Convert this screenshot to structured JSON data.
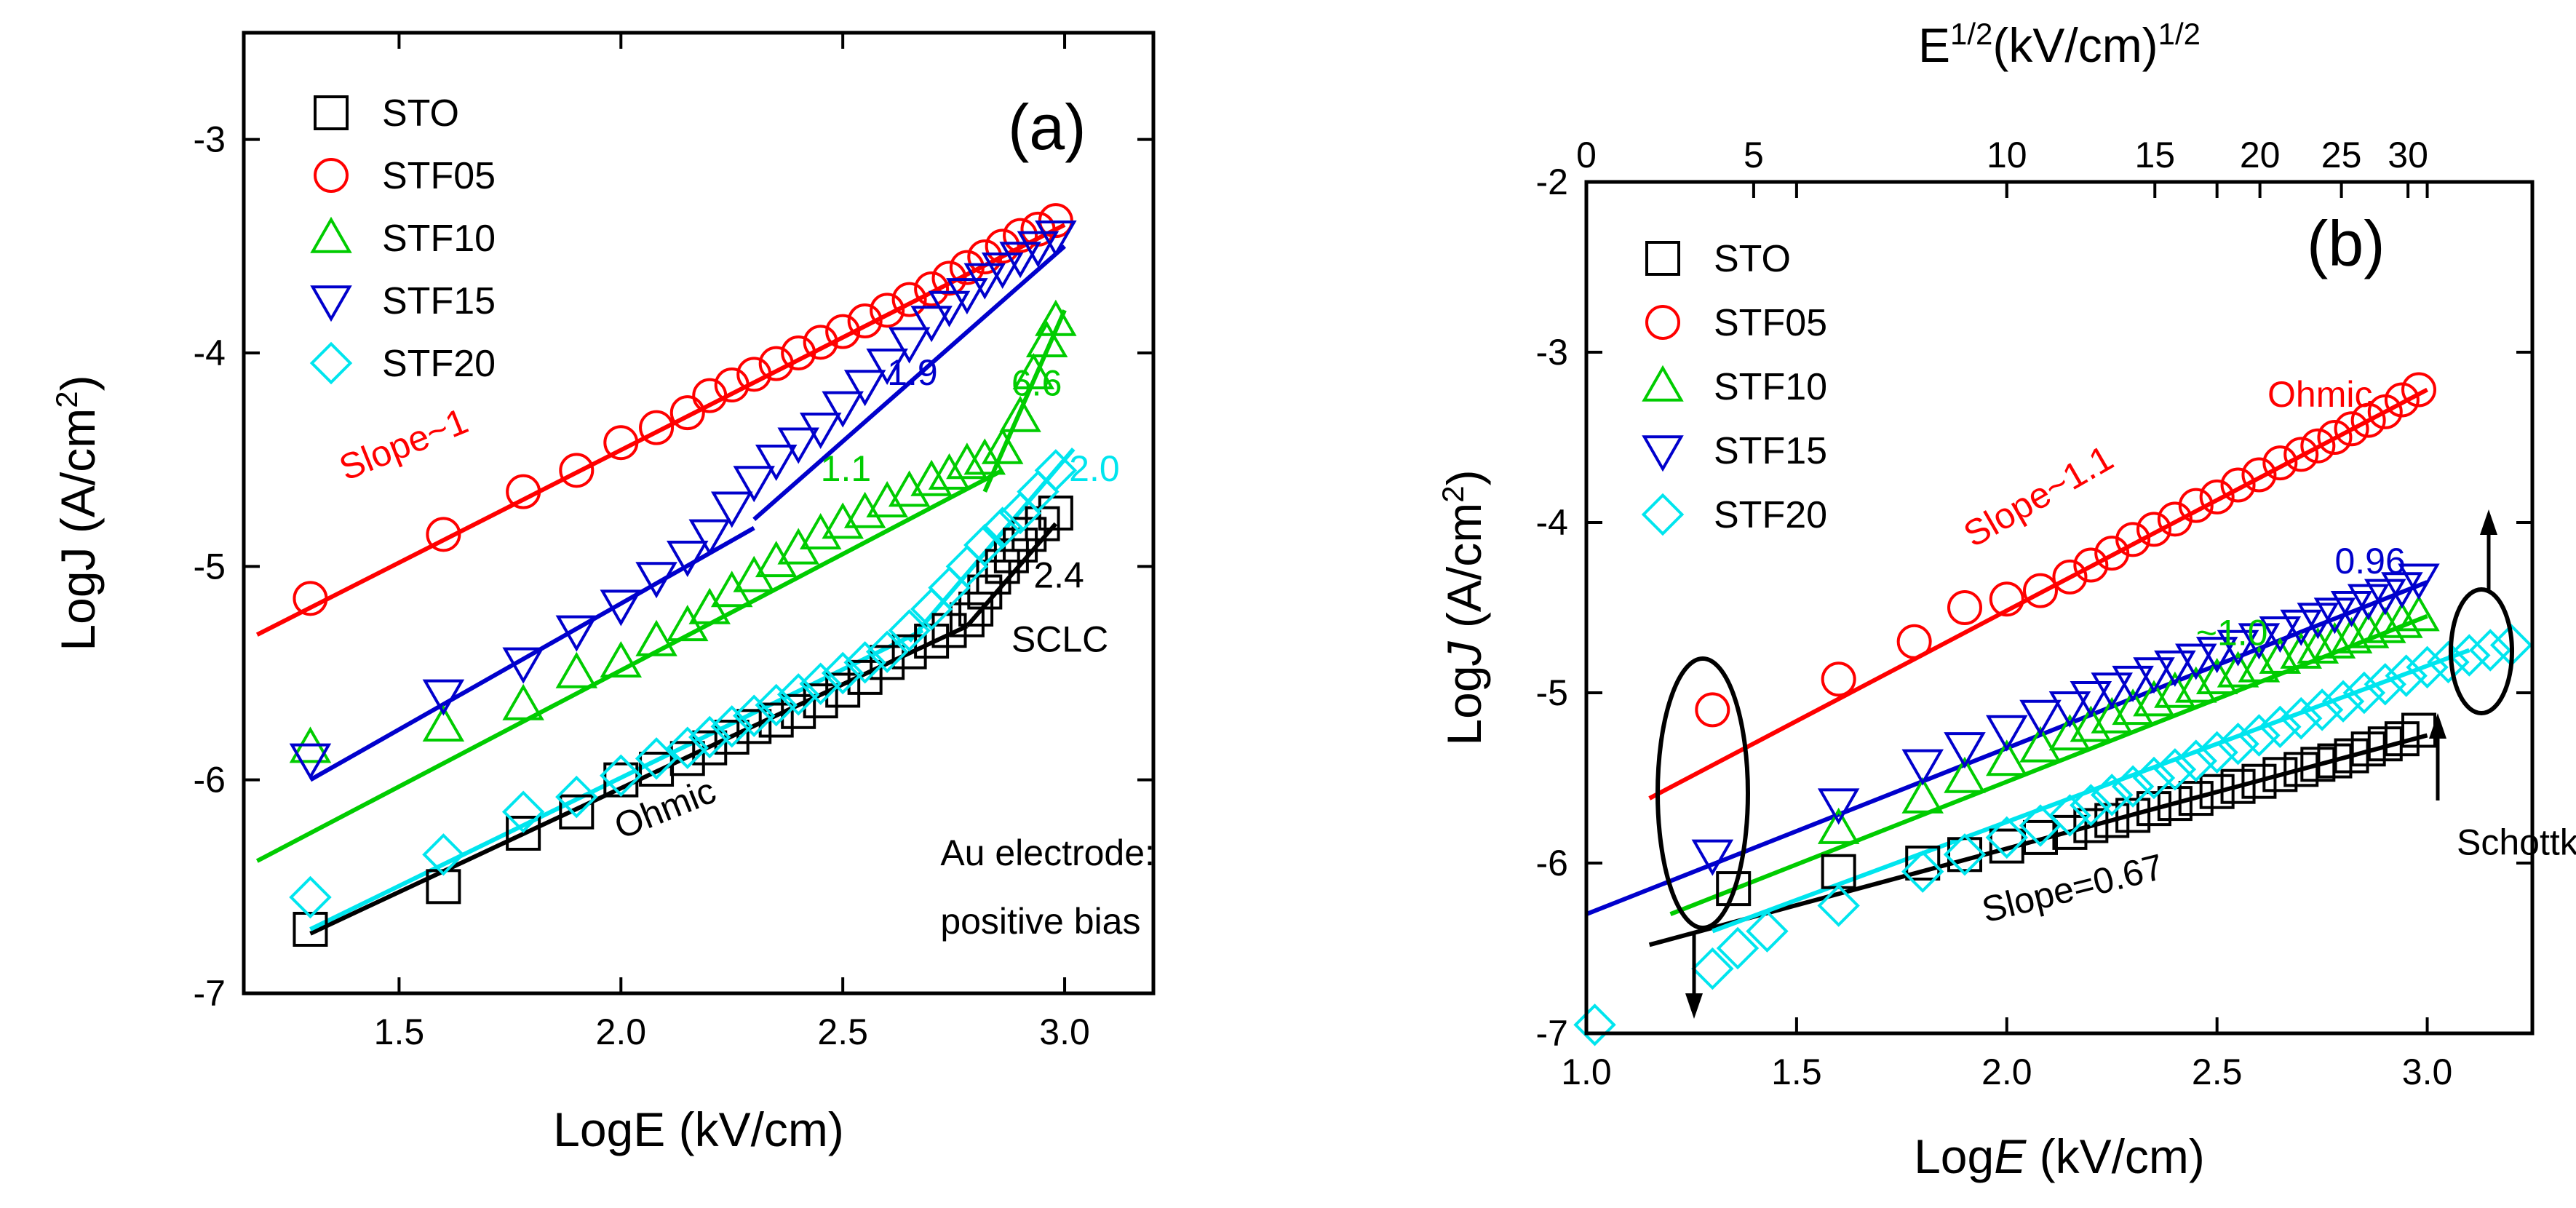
{
  "chart_data": [
    {
      "panel": "(a)",
      "type": "scatter",
      "xlabel": "LogE (kV/cm)",
      "ylabel_parts": [
        "LogJ (A/cm",
        "2",
        ")"
      ],
      "xlim": [
        1.15,
        3.2
      ],
      "ylim": [
        -7,
        -2.5
      ],
      "xticks": [
        1.5,
        2.0,
        2.5,
        3.0
      ],
      "xtick_labels": [
        "1.5",
        "2.0",
        "2.5",
        "3.0"
      ],
      "yticks": [
        -7,
        -6,
        -5,
        -4,
        -3
      ],
      "ytick_labels": [
        "-7",
        "-6",
        "-5",
        "-4",
        "-3"
      ],
      "legend": [
        "STO",
        "STF05",
        "STF10",
        "STF15",
        "STF20"
      ],
      "series": [
        {
          "name": "STO",
          "marker": "square",
          "color": "#000000",
          "x": [
            1.3,
            1.6,
            1.78,
            1.9,
            2.0,
            2.08,
            2.15,
            2.2,
            2.25,
            2.3,
            2.35,
            2.4,
            2.45,
            2.5,
            2.55,
            2.6,
            2.65,
            2.7,
            2.74,
            2.78,
            2.8,
            2.82,
            2.84,
            2.86,
            2.88,
            2.9,
            2.92,
            2.95,
            2.98
          ],
          "y": [
            -6.7,
            -6.5,
            -6.25,
            -6.15,
            -6.0,
            -5.95,
            -5.9,
            -5.85,
            -5.8,
            -5.75,
            -5.72,
            -5.68,
            -5.63,
            -5.58,
            -5.52,
            -5.45,
            -5.4,
            -5.35,
            -5.3,
            -5.25,
            -5.2,
            -5.12,
            -5.05,
            -5.0,
            -4.95,
            -4.9,
            -4.85,
            -4.8,
            -4.75
          ]
        },
        {
          "name": "STF05",
          "marker": "circle",
          "color": "#ff0000",
          "x": [
            1.3,
            1.6,
            1.78,
            1.9,
            2.0,
            2.08,
            2.15,
            2.2,
            2.25,
            2.3,
            2.35,
            2.4,
            2.45,
            2.5,
            2.55,
            2.6,
            2.65,
            2.7,
            2.74,
            2.78,
            2.82,
            2.86,
            2.9,
            2.94,
            2.98
          ],
          "y": [
            -5.15,
            -4.85,
            -4.65,
            -4.55,
            -4.42,
            -4.35,
            -4.28,
            -4.2,
            -4.15,
            -4.1,
            -4.05,
            -4.0,
            -3.95,
            -3.9,
            -3.85,
            -3.8,
            -3.75,
            -3.7,
            -3.65,
            -3.6,
            -3.55,
            -3.5,
            -3.45,
            -3.42,
            -3.38
          ]
        },
        {
          "name": "STF10",
          "marker": "triangle-up",
          "color": "#00cc00",
          "x": [
            1.3,
            1.6,
            1.78,
            1.9,
            2.0,
            2.08,
            2.15,
            2.2,
            2.25,
            2.3,
            2.35,
            2.4,
            2.45,
            2.5,
            2.55,
            2.6,
            2.65,
            2.7,
            2.74,
            2.78,
            2.82,
            2.86,
            2.9,
            2.93,
            2.96,
            2.98
          ],
          "y": [
            -5.85,
            -5.75,
            -5.65,
            -5.5,
            -5.45,
            -5.35,
            -5.28,
            -5.2,
            -5.12,
            -5.05,
            -4.98,
            -4.92,
            -4.85,
            -4.8,
            -4.75,
            -4.7,
            -4.65,
            -4.6,
            -4.57,
            -4.52,
            -4.5,
            -4.45,
            -4.3,
            -4.1,
            -3.95,
            -3.85
          ]
        },
        {
          "name": "STF15",
          "marker": "triangle-down",
          "color": "#0000cc",
          "x": [
            1.3,
            1.6,
            1.78,
            1.9,
            2.0,
            2.08,
            2.15,
            2.2,
            2.25,
            2.3,
            2.35,
            2.4,
            2.45,
            2.5,
            2.55,
            2.6,
            2.65,
            2.7,
            2.74,
            2.78,
            2.82,
            2.86,
            2.9,
            2.94,
            2.98
          ],
          "y": [
            -5.9,
            -5.6,
            -5.45,
            -5.3,
            -5.18,
            -5.05,
            -4.95,
            -4.85,
            -4.72,
            -4.6,
            -4.5,
            -4.42,
            -4.35,
            -4.25,
            -4.15,
            -4.05,
            -3.95,
            -3.85,
            -3.78,
            -3.72,
            -3.65,
            -3.6,
            -3.55,
            -3.5,
            -3.45
          ]
        },
        {
          "name": "STF20",
          "marker": "diamond",
          "color": "#00e5ee",
          "x": [
            1.3,
            1.6,
            1.78,
            1.9,
            2.0,
            2.08,
            2.15,
            2.2,
            2.25,
            2.3,
            2.35,
            2.4,
            2.45,
            2.5,
            2.55,
            2.6,
            2.65,
            2.7,
            2.74,
            2.78,
            2.82,
            2.86,
            2.9,
            2.94,
            2.98
          ],
          "y": [
            -6.55,
            -6.35,
            -6.15,
            -6.08,
            -5.98,
            -5.9,
            -5.85,
            -5.8,
            -5.75,
            -5.7,
            -5.65,
            -5.6,
            -5.55,
            -5.5,
            -5.45,
            -5.4,
            -5.3,
            -5.2,
            -5.1,
            -5.0,
            -4.9,
            -4.82,
            -4.75,
            -4.65,
            -4.55
          ]
        }
      ],
      "fits": [
        {
          "series": "STO",
          "x": [
            1.3,
            2.78
          ],
          "y": [
            -6.72,
            -5.28
          ]
        },
        {
          "series": "STO",
          "x": [
            2.78,
            2.98
          ],
          "y": [
            -5.28,
            -4.8
          ]
        },
        {
          "series": "STF05",
          "x": [
            1.18,
            3.0
          ],
          "y": [
            -5.32,
            -3.4
          ]
        },
        {
          "series": "STF10",
          "x": [
            1.18,
            2.86
          ],
          "y": [
            -6.38,
            -4.55
          ]
        },
        {
          "series": "STF10",
          "x": [
            2.82,
            3.0
          ],
          "y": [
            -4.65,
            -3.8
          ]
        },
        {
          "series": "STF15",
          "x": [
            1.3,
            2.3
          ],
          "y": [
            -6.0,
            -4.82
          ]
        },
        {
          "series": "STF15",
          "x": [
            2.3,
            3.0
          ],
          "y": [
            -4.78,
            -3.5
          ]
        },
        {
          "series": "STF20",
          "x": [
            1.3,
            2.68
          ],
          "y": [
            -6.7,
            -5.3
          ]
        },
        {
          "series": "STF20",
          "x": [
            2.65,
            3.02
          ],
          "y": [
            -5.35,
            -4.45
          ]
        }
      ],
      "annotations": [
        {
          "text": "Slope~1",
          "x": 1.38,
          "y": -4.6,
          "color": "#ff0000",
          "rotate": -22
        },
        {
          "text": "1.9",
          "x": 2.6,
          "y": -4.15,
          "color": "#0000cc"
        },
        {
          "text": "6.6",
          "x": 2.88,
          "y": -4.2,
          "color": "#00cc00"
        },
        {
          "text": "1.1",
          "x": 2.45,
          "y": -4.6,
          "color": "#00cc00"
        },
        {
          "text": "2.0",
          "x": 3.01,
          "y": -4.6,
          "color": "#00e5ee"
        },
        {
          "text": "2.4",
          "x": 2.93,
          "y": -5.1,
          "color": "#000000"
        },
        {
          "text": "SCLC",
          "x": 2.88,
          "y": -5.4,
          "color": "#000000"
        },
        {
          "text": "Ohmic",
          "x": 2.0,
          "y": -6.28,
          "color": "#000000",
          "rotate": -22
        },
        {
          "text": "Au electrode:",
          "x": 2.72,
          "y": -6.4,
          "color": "#000000"
        },
        {
          "text": "positive bias",
          "x": 2.72,
          "y": -6.72,
          "color": "#000000"
        }
      ]
    },
    {
      "panel": "(b)",
      "type": "scatter",
      "xlabel_parts": [
        "Log",
        "E",
        " (kV/cm)"
      ],
      "ylabel_parts": [
        "Log",
        "J",
        " (A/cm",
        "2",
        ")"
      ],
      "top_xlabel_parts": [
        "E",
        "1/2",
        "(kV/cm)",
        "1/2"
      ],
      "xlim": [
        1.0,
        3.25
      ],
      "ylim": [
        -7,
        -2
      ],
      "xticks": [
        1.0,
        1.5,
        2.0,
        2.5,
        3.0
      ],
      "xtick_labels": [
        "1.0",
        "1.5",
        "2.0",
        "2.5",
        "3.0"
      ],
      "yticks": [
        -7,
        -6,
        -5,
        -4,
        -3,
        -2
      ],
      "ytick_labels": [
        "-7",
        "-6",
        "-5",
        "-4",
        "-3",
        "-2"
      ],
      "top_xticks": [
        0,
        5,
        10,
        15,
        20,
        25,
        30
      ],
      "top_xtick_labels": [
        "0",
        "5",
        "10",
        "15",
        "20",
        "25",
        "30"
      ],
      "legend": [
        "STO",
        "STF05",
        "STF10",
        "STF15",
        "STF20"
      ],
      "series": [
        {
          "name": "STO",
          "marker": "square",
          "color": "#000000",
          "x": [
            1.35,
            1.6,
            1.8,
            1.9,
            2.0,
            2.08,
            2.15,
            2.2,
            2.25,
            2.3,
            2.35,
            2.4,
            2.45,
            2.5,
            2.55,
            2.6,
            2.65,
            2.7,
            2.74,
            2.78,
            2.82,
            2.86,
            2.9,
            2.94,
            2.98
          ],
          "y": [
            -6.15,
            -6.05,
            -6.0,
            -5.95,
            -5.9,
            -5.85,
            -5.82,
            -5.78,
            -5.75,
            -5.72,
            -5.68,
            -5.65,
            -5.62,
            -5.58,
            -5.55,
            -5.52,
            -5.48,
            -5.45,
            -5.42,
            -5.4,
            -5.37,
            -5.33,
            -5.3,
            -5.27,
            -5.22
          ]
        },
        {
          "name": "STF05",
          "marker": "circle",
          "color": "#ff0000",
          "x": [
            1.3,
            1.6,
            1.78,
            1.9,
            2.0,
            2.08,
            2.15,
            2.2,
            2.25,
            2.3,
            2.35,
            2.4,
            2.45,
            2.5,
            2.55,
            2.6,
            2.65,
            2.7,
            2.74,
            2.78,
            2.82,
            2.86,
            2.9,
            2.94,
            2.98
          ],
          "y": [
            -5.1,
            -4.92,
            -4.7,
            -4.5,
            -4.45,
            -4.4,
            -4.32,
            -4.25,
            -4.18,
            -4.1,
            -4.04,
            -3.98,
            -3.9,
            -3.85,
            -3.78,
            -3.72,
            -3.65,
            -3.6,
            -3.55,
            -3.5,
            -3.45,
            -3.4,
            -3.35,
            -3.28,
            -3.22
          ]
        },
        {
          "name": "STF10",
          "marker": "triangle-up",
          "color": "#00cc00",
          "x": [
            1.6,
            1.8,
            1.9,
            2.0,
            2.08,
            2.15,
            2.2,
            2.25,
            2.3,
            2.35,
            2.4,
            2.45,
            2.5,
            2.55,
            2.6,
            2.65,
            2.7,
            2.74,
            2.78,
            2.82,
            2.86,
            2.9,
            2.94,
            2.98
          ],
          "y": [
            -5.8,
            -5.62,
            -5.5,
            -5.4,
            -5.32,
            -5.25,
            -5.2,
            -5.15,
            -5.1,
            -5.05,
            -5.0,
            -4.97,
            -4.92,
            -4.88,
            -4.85,
            -4.8,
            -4.77,
            -4.74,
            -4.71,
            -4.68,
            -4.65,
            -4.62,
            -4.59,
            -4.55
          ]
        },
        {
          "name": "STF15",
          "marker": "triangle-down",
          "color": "#0000cc",
          "x": [
            1.3,
            1.6,
            1.8,
            1.9,
            2.0,
            2.08,
            2.15,
            2.2,
            2.25,
            2.3,
            2.35,
            2.4,
            2.45,
            2.5,
            2.55,
            2.6,
            2.65,
            2.7,
            2.74,
            2.78,
            2.82,
            2.86,
            2.9,
            2.94,
            2.98
          ],
          "y": [
            -5.95,
            -5.65,
            -5.42,
            -5.32,
            -5.22,
            -5.13,
            -5.08,
            -5.02,
            -4.97,
            -4.93,
            -4.88,
            -4.84,
            -4.8,
            -4.76,
            -4.72,
            -4.68,
            -4.64,
            -4.6,
            -4.56,
            -4.53,
            -4.49,
            -4.45,
            -4.42,
            -4.38,
            -4.33
          ]
        },
        {
          "name": "STF20",
          "marker": "diamond",
          "color": "#00e5ee",
          "x": [
            1.02,
            1.3,
            1.36,
            1.43,
            1.6,
            1.8,
            1.9,
            2.0,
            2.08,
            2.15,
            2.2,
            2.25,
            2.3,
            2.35,
            2.4,
            2.45,
            2.5,
            2.55,
            2.6,
            2.65,
            2.7,
            2.75,
            2.8,
            2.85,
            2.9,
            2.95,
            3.0,
            3.05,
            3.1,
            3.15,
            3.2
          ],
          "y": [
            -6.95,
            -6.62,
            -6.5,
            -6.4,
            -6.25,
            -6.05,
            -5.95,
            -5.85,
            -5.78,
            -5.72,
            -5.66,
            -5.6,
            -5.55,
            -5.5,
            -5.45,
            -5.4,
            -5.35,
            -5.3,
            -5.25,
            -5.2,
            -5.15,
            -5.1,
            -5.05,
            -5.0,
            -4.95,
            -4.9,
            -4.85,
            -4.82,
            -4.78,
            -4.75,
            -4.72
          ]
        }
      ],
      "fits": [
        {
          "series": "STO",
          "x": [
            1.15,
            3.0
          ],
          "y": [
            -6.48,
            -5.25
          ]
        },
        {
          "series": "STF05",
          "x": [
            1.15,
            3.0
          ],
          "y": [
            -5.62,
            -3.22
          ]
        },
        {
          "series": "STF10",
          "x": [
            1.2,
            3.0
          ],
          "y": [
            -6.3,
            -4.55
          ]
        },
        {
          "series": "STF15",
          "x": [
            1.0,
            3.0
          ],
          "y": [
            -6.3,
            -4.35
          ]
        },
        {
          "series": "STF20",
          "x": [
            1.3,
            3.1
          ],
          "y": [
            -6.4,
            -4.75
          ]
        }
      ],
      "annotations": [
        {
          "text": "Ohmic",
          "x": 2.62,
          "y": -3.32,
          "color": "#ff0000"
        },
        {
          "text": "Slope~1.1",
          "x": 1.92,
          "y": -4.15,
          "color": "#ff0000",
          "rotate": -30
        },
        {
          "text": "0.96",
          "x": 2.78,
          "y": -4.3,
          "color": "#0000cc"
        },
        {
          "text": "~1.0",
          "x": 2.45,
          "y": -4.72,
          "color": "#00cc00"
        },
        {
          "text": "Slope=0.67",
          "x": 1.95,
          "y": -6.35,
          "color": "#000000",
          "rotate": -14
        },
        {
          "text": "Schottky",
          "x": 3.07,
          "y": -5.95,
          "color": "#000000"
        }
      ]
    }
  ]
}
